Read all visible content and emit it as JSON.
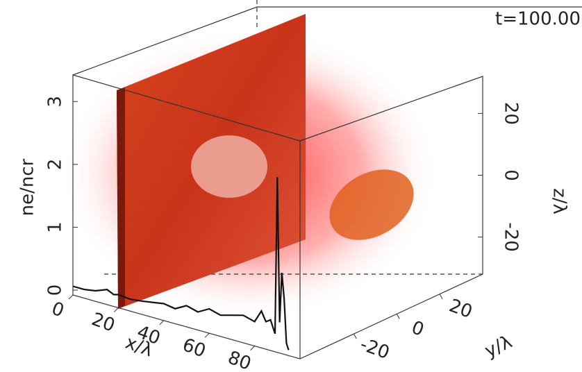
{
  "chart_data": {
    "type": "line",
    "title": "t=100.00",
    "x_label": "x/λ",
    "y_label": "ne/ncr",
    "x": [
      0,
      5,
      10,
      15,
      18,
      20,
      25,
      30,
      35,
      40,
      45,
      50,
      55,
      60,
      65,
      70,
      75,
      80,
      83,
      85,
      87,
      89,
      90,
      91,
      92,
      93,
      94,
      95
    ],
    "values": [
      0.05,
      0.05,
      0.08,
      0.15,
      0.1,
      0.12,
      0.1,
      0.12,
      0.15,
      0.18,
      0.15,
      0.25,
      0.2,
      0.3,
      0.25,
      0.3,
      0.35,
      0.3,
      0.5,
      0.35,
      0.4,
      0.2,
      2.7,
      0.4,
      1.2,
      0.8,
      0.1,
      0
    ],
    "color": "#111111",
    "xlim": [
      0,
      100
    ],
    "xticks": [
      0,
      20,
      40,
      60,
      80
    ],
    "ylim": [
      0,
      3.5
    ],
    "yticks": [
      0,
      1,
      2,
      3
    ],
    "z_label": "z/λ",
    "zlim": [
      -32,
      32
    ],
    "zticks": [
      -20,
      0,
      20
    ],
    "depth_label": "y/λ",
    "depth_lim": [
      -45,
      40
    ],
    "depth_ticks": [
      -20,
      0,
      20
    ]
  }
}
